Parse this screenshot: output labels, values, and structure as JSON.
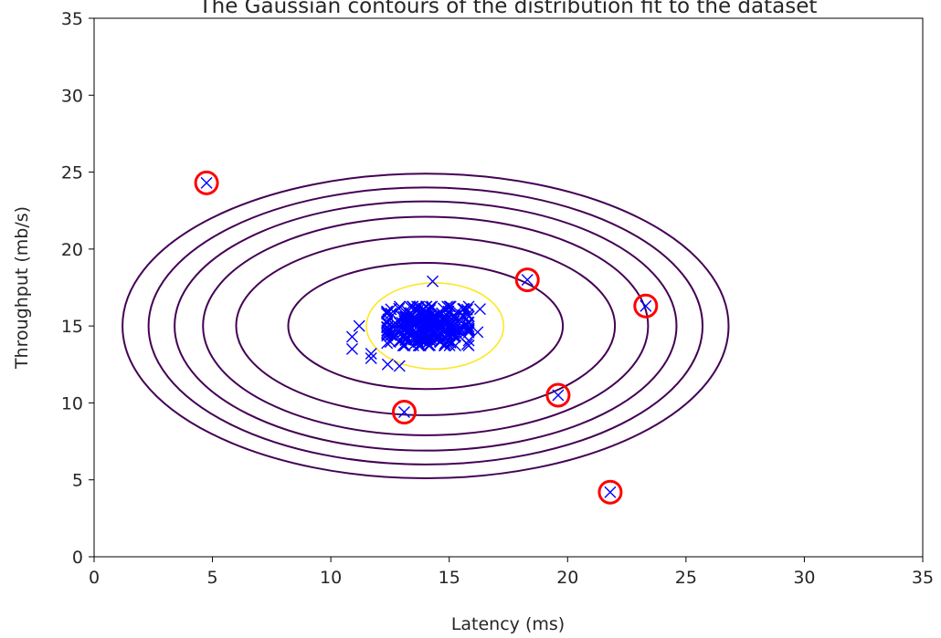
{
  "chart_data": {
    "type": "scatter",
    "title": "The Gaussian contours of the distribution fit to the dataset",
    "xlabel": "Latency (ms)",
    "ylabel": "Throughput (mb/s)",
    "xlim": [
      0,
      35
    ],
    "ylim": [
      0,
      35
    ],
    "xticks": [
      0,
      5,
      10,
      15,
      20,
      25,
      30,
      35
    ],
    "yticks": [
      0,
      5,
      10,
      15,
      20,
      25,
      30,
      35
    ],
    "grid": false,
    "legend": "none",
    "data_marker": "x",
    "data_color": "#0000ff",
    "outlier_marker": "circle",
    "outlier_color": "#ff0000",
    "outliers": [
      {
        "x": 4.75,
        "y": 24.3
      },
      {
        "x": 13.1,
        "y": 9.4
      },
      {
        "x": 18.3,
        "y": 18.0
      },
      {
        "x": 19.6,
        "y": 10.5
      },
      {
        "x": 21.8,
        "y": 4.2
      },
      {
        "x": 23.3,
        "y": 16.3
      }
    ],
    "cluster": {
      "center": [
        14.1,
        15.0
      ],
      "spread": [
        1.35,
        1.35
      ],
      "count": 300,
      "outlying_points": [
        {
          "x": 10.9,
          "y": 14.3
        },
        {
          "x": 10.9,
          "y": 13.5
        },
        {
          "x": 11.2,
          "y": 15.0
        },
        {
          "x": 11.7,
          "y": 13.2
        },
        {
          "x": 11.7,
          "y": 12.9
        },
        {
          "x": 12.4,
          "y": 12.5
        },
        {
          "x": 12.9,
          "y": 12.4
        },
        {
          "x": 14.3,
          "y": 17.9
        },
        {
          "x": 16.3,
          "y": 16.1
        },
        {
          "x": 16.2,
          "y": 14.6
        }
      ]
    },
    "contours": {
      "color": "#440154",
      "center": [
        14.0,
        15.0
      ],
      "ellipses": [
        {
          "rx": 5.8,
          "ry": 4.1
        },
        {
          "rx": 8.0,
          "ry": 5.8
        },
        {
          "rx": 9.4,
          "ry": 7.1
        },
        {
          "rx": 10.6,
          "ry": 8.1
        },
        {
          "rx": 11.7,
          "ry": 9.0
        },
        {
          "rx": 12.8,
          "ry": 9.9
        }
      ],
      "inner_color": "#fde725",
      "inner": {
        "center": [
          14.4,
          15.0
        ],
        "rx": 2.9,
        "ry": 2.8
      }
    }
  }
}
